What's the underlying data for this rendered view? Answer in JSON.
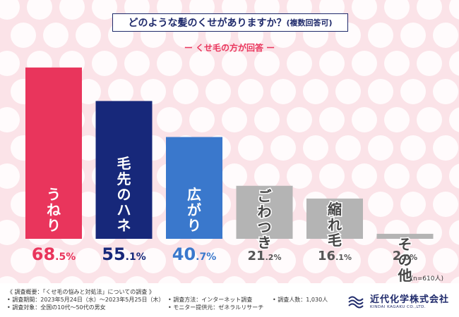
{
  "title": {
    "main": "どのような髪のくせがありますか？",
    "sub": "(複数回答可)"
  },
  "subtitle": "ー くせ毛の方が回答 ー",
  "colors": {
    "uneri": "#e9355c",
    "hane": "#17287a",
    "hiro": "#3a78cc",
    "gray": "#b4b4b4",
    "red_text": "#e9355c",
    "navy_text": "#17287a",
    "blue_text": "#3a78cc",
    "gray_text": "#555555"
  },
  "chart_data": {
    "type": "bar",
    "categories": [
      "うねり",
      "毛先のハネ",
      "広がり",
      "ごわつき",
      "縮れ毛",
      "その他"
    ],
    "values": [
      68.5,
      55.1,
      40.7,
      21.2,
      16.1,
      2.0
    ],
    "value_labels": [
      {
        "int": "68",
        "dec": ".5",
        "unit": "%"
      },
      {
        "int": "55",
        "dec": ".1",
        "unit": "%"
      },
      {
        "int": "40",
        "dec": ".7",
        "unit": "%"
      },
      {
        "int": "21",
        "dec": ".2",
        "unit": "%"
      },
      {
        "int": "16",
        "dec": ".1",
        "unit": "%"
      },
      {
        "int": "2",
        "dec": ".0",
        "unit": "%"
      }
    ],
    "ylim": [
      0,
      100
    ],
    "sample_size": "(n=610人)"
  },
  "footer": {
    "overview": "《 調査概要：「くせ毛の悩みと対処法」についての調査 》",
    "period": "• 調査期間：2023年5月24日（水）〜2023年5月25日（木）",
    "method": "• 調査方法：インターネット調査",
    "count": "• 調査人数：1,030人",
    "target": "• 調査対象：全国の10代〜50代の男女",
    "provider": "• モニター提供元：ゼネラルリサーチ"
  },
  "logo": {
    "name_jp": "近代化学株式会社",
    "name_en": "KINDAI KAGAKU CO.,LTD."
  }
}
